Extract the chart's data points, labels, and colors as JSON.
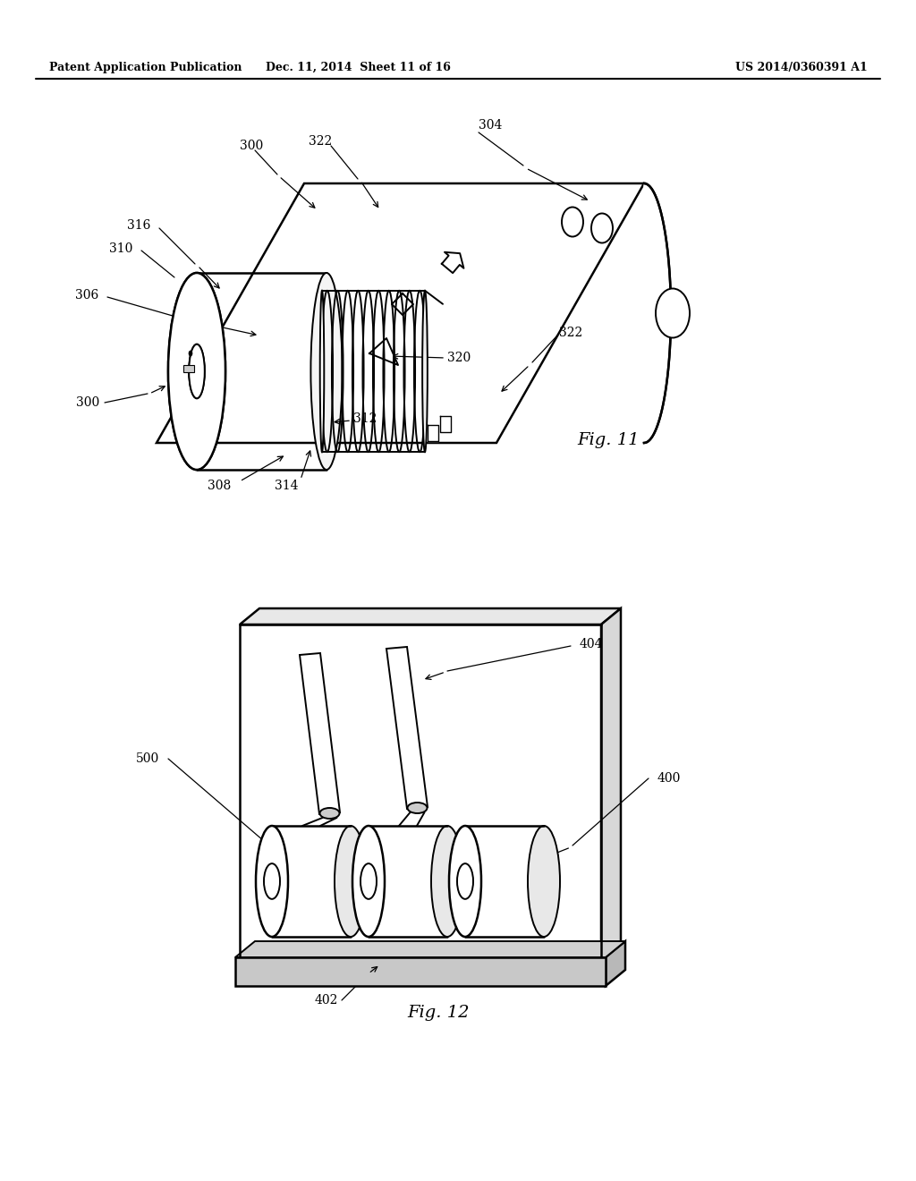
{
  "bg_color": "#ffffff",
  "header_left": "Patent Application Publication",
  "header_mid": "Dec. 11, 2014  Sheet 11 of 16",
  "header_right": "US 2014/0360391 A1",
  "fig11_label": "Fig. 11",
  "fig12_label": "Fig. 12"
}
